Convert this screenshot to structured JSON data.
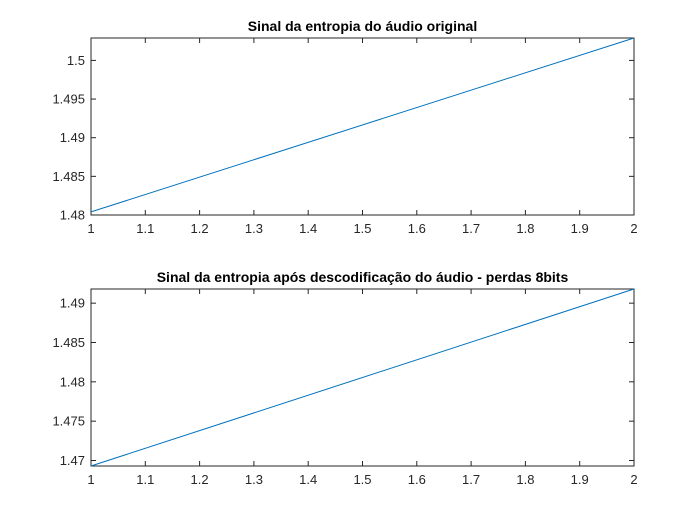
{
  "chart_data": [
    {
      "type": "line",
      "title": "Sinal da entropia do áudio original",
      "xlabel": "",
      "ylabel": "",
      "xlim": [
        1,
        2
      ],
      "ylim": [
        1.48,
        1.5029
      ],
      "xticks": [
        "1",
        "1.1",
        "1.2",
        "1.3",
        "1.4",
        "1.5",
        "1.6",
        "1.7",
        "1.8",
        "1.9",
        "2"
      ],
      "yticks": [
        "1.48",
        "1.485",
        "1.49",
        "1.495",
        "1.5"
      ],
      "grid": false,
      "series": [
        {
          "x": [
            1,
            2
          ],
          "y": [
            1.4804,
            1.5029
          ],
          "color": "#0072BD"
        }
      ]
    },
    {
      "type": "line",
      "title": "Sinal  da entropia após descodificação do áudio - perdas 8bits",
      "xlabel": "",
      "ylabel": "",
      "xlim": [
        1,
        2
      ],
      "ylim": [
        1.4693,
        1.4918
      ],
      "xticks": [
        "1",
        "1.1",
        "1.2",
        "1.3",
        "1.4",
        "1.5",
        "1.6",
        "1.7",
        "1.8",
        "1.9",
        "2"
      ],
      "yticks": [
        "1.47",
        "1.475",
        "1.48",
        "1.485",
        "1.49"
      ],
      "grid": false,
      "series": [
        {
          "x": [
            1,
            2
          ],
          "y": [
            1.4693,
            1.4918
          ],
          "color": "#0072BD"
        }
      ]
    }
  ]
}
